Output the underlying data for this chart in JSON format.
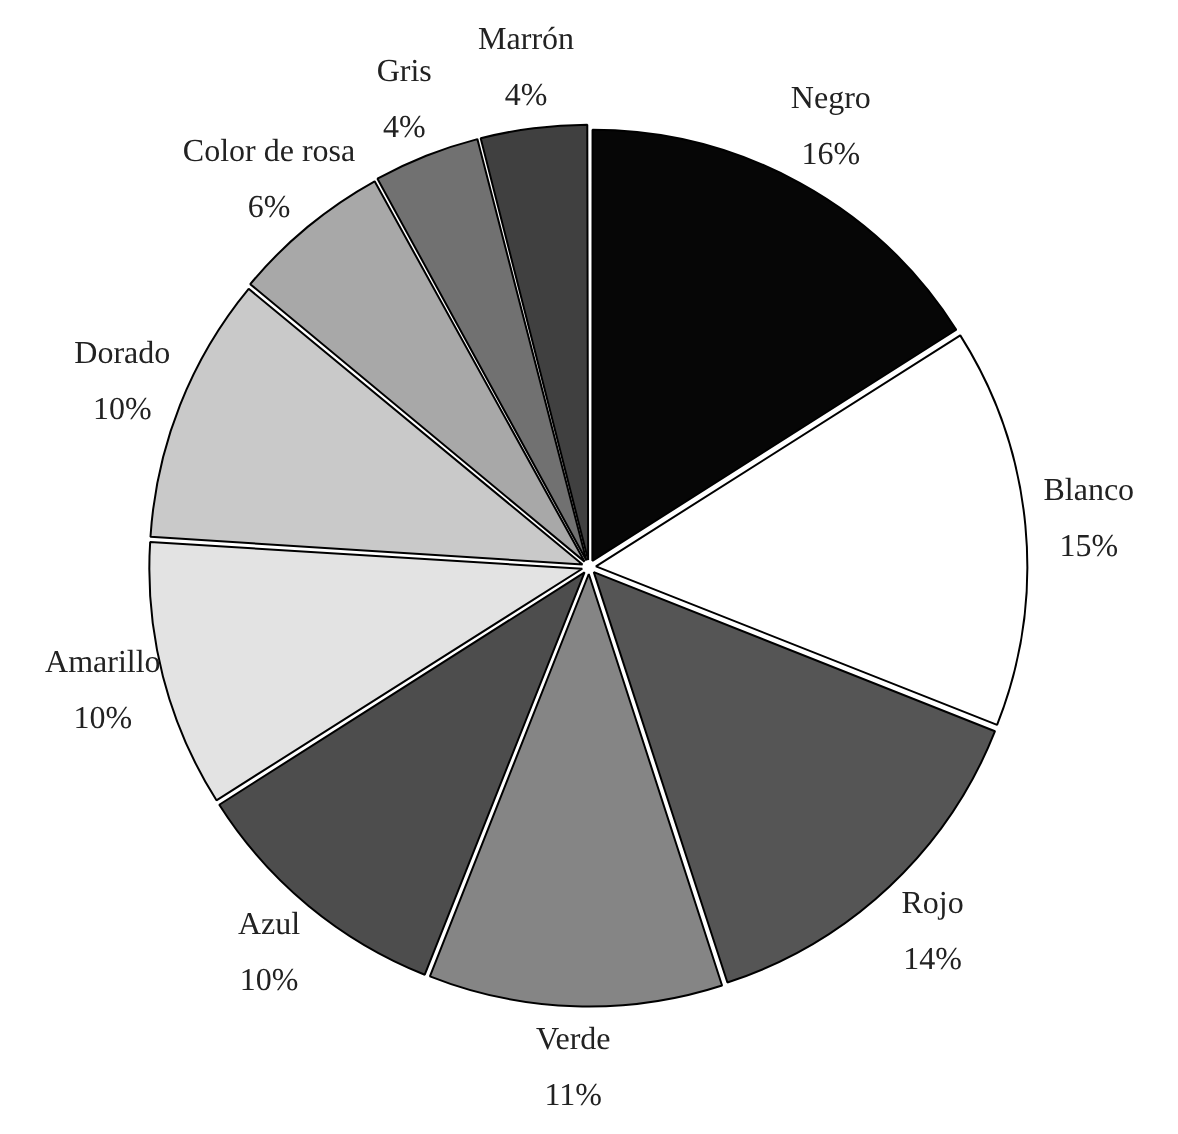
{
  "chart_data": {
    "type": "pie",
    "categories": [
      "Negro",
      "Blanco",
      "Rojo",
      "Verde",
      "Azul",
      "Amarillo",
      "Dorado",
      "Color de rosa",
      "Gris",
      "Marrón"
    ],
    "values": [
      16,
      15,
      14,
      11,
      10,
      10,
      10,
      6,
      4,
      4
    ],
    "value_labels": [
      "16%",
      "15%",
      "14%",
      "11%",
      "10%",
      "10%",
      "10%",
      "6%",
      "4%",
      "4%"
    ],
    "colors": [
      "#060606",
      "#ffffff",
      "#555555",
      "#858585",
      "#4d4d4d",
      "#e3e3e3",
      "#c9c9c9",
      "#a8a8a8",
      "#717171",
      "#404040"
    ]
  }
}
